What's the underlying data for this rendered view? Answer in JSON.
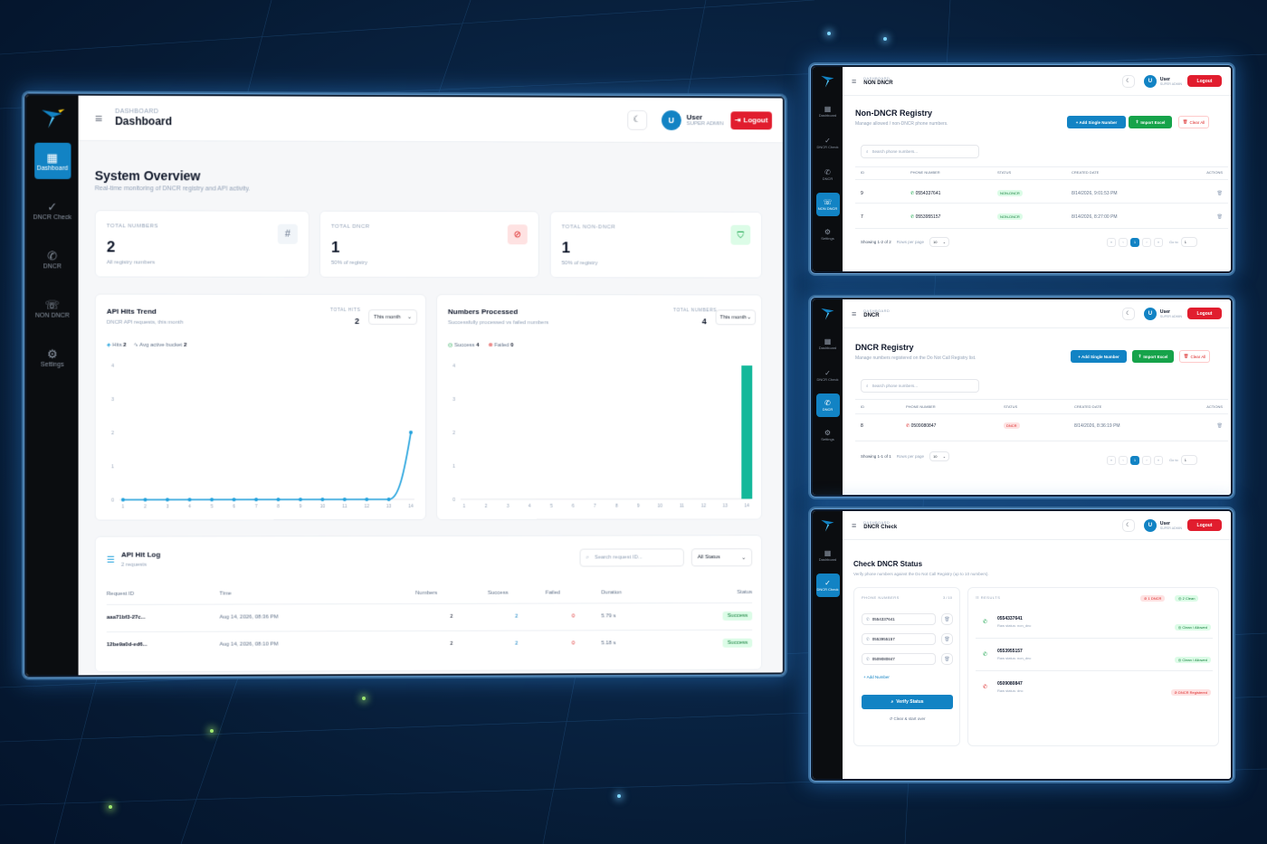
{
  "brand": {
    "accent": "#1283c4",
    "danger": "#e11d2e",
    "success": "#16a34a"
  },
  "nav": [
    {
      "label": "Dashboard",
      "icon": "grid-icon"
    },
    {
      "label": "DNCR Check",
      "icon": "check-circle-icon"
    },
    {
      "label": "DNCR",
      "icon": "phone-off-icon"
    },
    {
      "label": "NON DNCR",
      "icon": "phone-forward-icon"
    },
    {
      "label": "Settings",
      "icon": "gear-icon"
    }
  ],
  "user": {
    "name": "User",
    "role": "SUPER ADMIN",
    "initial": "U",
    "logout": "Logout"
  },
  "dashboard": {
    "crumb": "DASHBOARD",
    "title": "Dashboard",
    "heading": "System Overview",
    "subheading": "Real-time monitoring of DNCR registry and API activity.",
    "stats": [
      {
        "label": "TOTAL NUMBERS",
        "value": "2",
        "sub": "All registry numbers"
      },
      {
        "label": "TOTAL DNCR",
        "value": "1",
        "sub": "50% of registry"
      },
      {
        "label": "TOTAL NON-DNCR",
        "value": "1",
        "sub": "50% of registry"
      }
    ],
    "trend": {
      "title": "API Hits Trend",
      "sub": "DNCR API requests, this month",
      "total_label": "TOTAL HITS",
      "total": "2",
      "range": "This month",
      "legend_hits": "Hits",
      "hits": "2",
      "legend_avg": "Avg active bucket",
      "avg": "2"
    },
    "processed": {
      "title": "Numbers Processed",
      "sub": "Successfully processed vs failed numbers",
      "total_label": "TOTAL NUMBERS",
      "total": "4",
      "range": "This month",
      "legend_success": "Success",
      "success": "4",
      "legend_failed": "Failed",
      "failed": "0"
    },
    "log": {
      "title": "API Hit Log",
      "sub": "2 requests",
      "search": "Search request ID...",
      "status": "All Status",
      "headers": [
        "Request ID",
        "Time",
        "Numbers",
        "Success",
        "Failed",
        "Duration",
        "Status"
      ],
      "rows": [
        [
          "aaa71bf3-27c...",
          "Aug 14, 2026, 08:36 PM",
          "2",
          "2",
          "0",
          "5.79 s",
          "Success"
        ],
        [
          "12be9a0d-ed6...",
          "Aug 14, 2026, 08:10 PM",
          "2",
          "2",
          "0",
          "5.18 s",
          "Success"
        ]
      ]
    }
  },
  "chart_data": [
    {
      "type": "line",
      "title": "API Hits Trend",
      "x": [
        1,
        2,
        3,
        4,
        5,
        6,
        7,
        8,
        9,
        10,
        11,
        12,
        13,
        14
      ],
      "series": [
        {
          "name": "Hits",
          "values": [
            0,
            0,
            0,
            0,
            0,
            0,
            0,
            0,
            0,
            0,
            0,
            0,
            0,
            2
          ]
        }
      ],
      "ylim": [
        0,
        4
      ],
      "yticks": [
        0,
        1,
        2,
        3,
        4
      ],
      "grid": false
    },
    {
      "type": "bar",
      "title": "Numbers Processed",
      "x": [
        1,
        2,
        3,
        4,
        5,
        6,
        7,
        8,
        9,
        10,
        11,
        12,
        13,
        14
      ],
      "series": [
        {
          "name": "Success",
          "values": [
            0,
            0,
            0,
            0,
            0,
            0,
            0,
            0,
            0,
            0,
            0,
            0,
            0,
            4
          ]
        }
      ],
      "ylim": [
        0,
        4
      ],
      "yticks": [
        0,
        1,
        2,
        3,
        4
      ],
      "grid": false
    }
  ],
  "nondncr": {
    "crumb": "DASHBOARD",
    "crumb_title": "NON DNCR",
    "title": "Non-DNCR Registry",
    "sub": "Manage allowed / non-DNCR phone numbers.",
    "add": "+ Add Single Number",
    "import": "Import Excel",
    "clear": "Clear All",
    "search": "Search phone numbers...",
    "headers": [
      "ID",
      "PHONE NUMBER",
      "STATUS",
      "CREATED DATE",
      "ACTIONS"
    ],
    "rows": [
      [
        "9",
        "0554337641",
        "NON-DNCR",
        "8/14/2026, 9:01:53 PM"
      ],
      [
        "7",
        "0553955157",
        "NON-DNCR",
        "8/14/2026, 8:27:00 PM"
      ]
    ],
    "showing": "Showing 1-2 of 2",
    "rpp": "Rows per page",
    "rpp_val": "10",
    "page": "1",
    "goto": "Go to",
    "goto_val": "1"
  },
  "dncr": {
    "crumb": "DASHBOARD",
    "crumb_title": "DNCR",
    "title": "DNCR Registry",
    "sub": "Manage numbers registered on the Do Not Call Registry list.",
    "add": "+ Add Single Number",
    "import": "Import Excel",
    "clear": "Clear All",
    "search": "Search phone numbers...",
    "headers": [
      "ID",
      "PHONE NUMBER",
      "STATUS",
      "CREATED DATE",
      "ACTIONS"
    ],
    "rows": [
      [
        "8",
        "0509080847",
        "DNCR",
        "8/14/2026, 8:36:19 PM"
      ]
    ],
    "showing": "Showing 1-1 of 1",
    "rpp": "Rows per page",
    "rpp_val": "10",
    "page": "1",
    "goto": "Go to",
    "goto_val": "1"
  },
  "check": {
    "crumb": "DASHBOARD",
    "crumb_title": "DNCR Check",
    "title": "Check DNCR Status",
    "sub": "Verify phone numbers against the Do Not Call Registry (up to 10 numbers).",
    "phones_label": "PHONE NUMBERS",
    "count": "3 / 10",
    "inputs": [
      "0554337641",
      "0553955157",
      "0509080847"
    ],
    "add": "+ Add Number",
    "verify": "Verify Status",
    "reset": "Clear & start over",
    "results_label": "RESULTS",
    "dncr_badge": "1 DNCR",
    "clean_badge": "2 Clean",
    "results": [
      {
        "number": "0554337641",
        "raw": "Raw status: non_dnc",
        "badge": "Clean / Allowed",
        "ok": true
      },
      {
        "number": "0553955157",
        "raw": "Raw status: non_dnc",
        "badge": "Clean / Allowed",
        "ok": true
      },
      {
        "number": "0509080847",
        "raw": "Raw status: dnc",
        "badge": "DNCR Registered",
        "ok": false
      }
    ]
  }
}
